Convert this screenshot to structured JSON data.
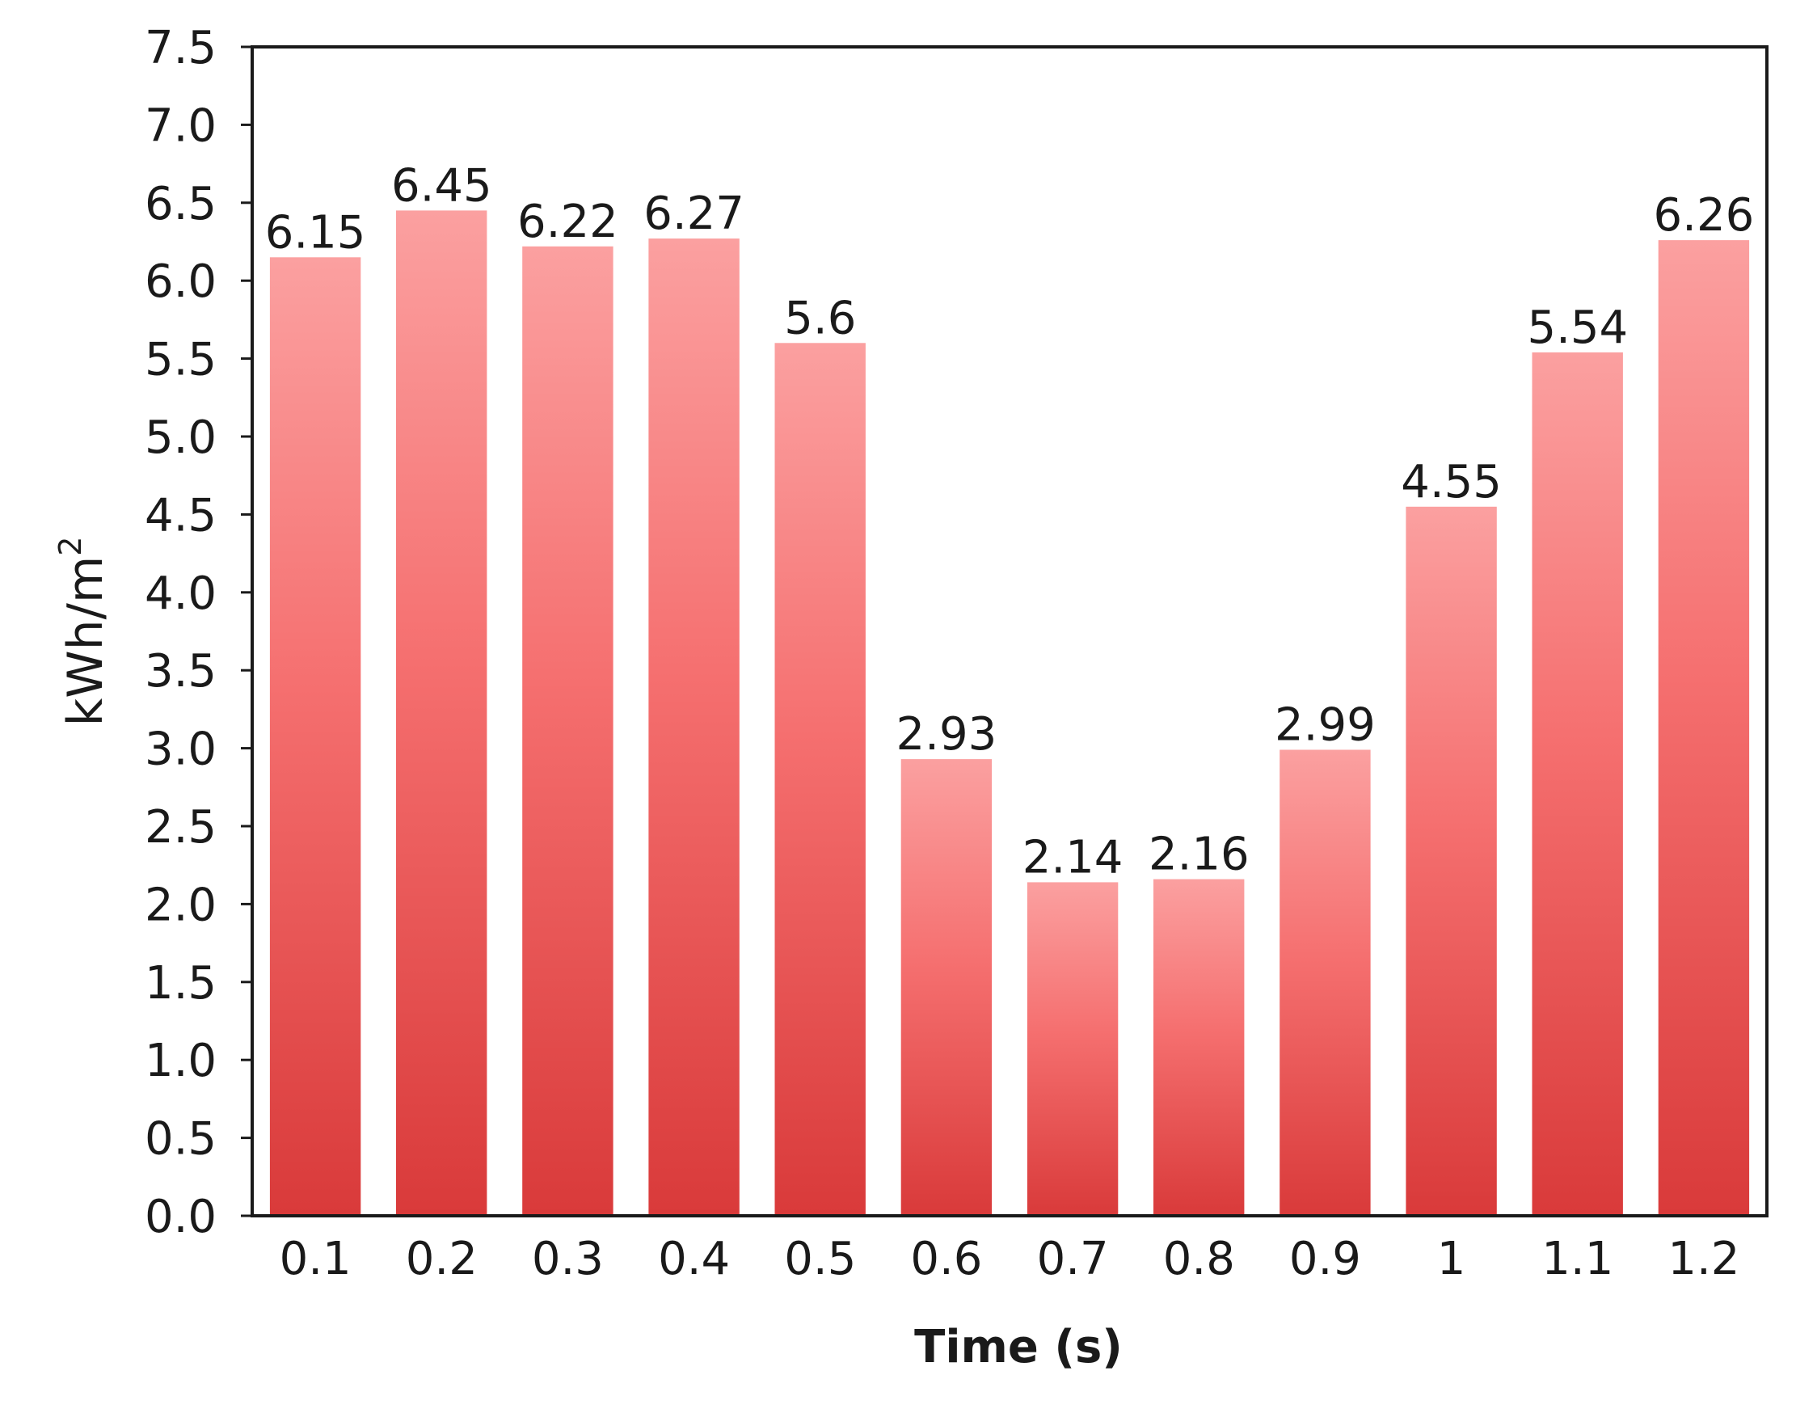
{
  "chart_data": {
    "type": "bar",
    "categories": [
      "0.1",
      "0.2",
      "0.3",
      "0.4",
      "0.5",
      "0.6",
      "0.7",
      "0.8",
      "0.9",
      "1",
      "1.1",
      "1.2"
    ],
    "values": [
      6.15,
      6.45,
      6.22,
      6.27,
      5.6,
      2.93,
      2.14,
      2.16,
      2.99,
      4.55,
      5.54,
      6.26
    ],
    "data_labels": [
      "6.15",
      "6.45",
      "6.22",
      "6.27",
      "5.6",
      "2.93",
      "2.14",
      "2.16",
      "2.99",
      "4.55",
      "5.54",
      "6.26"
    ],
    "title": "",
    "xlabel": "Time (s)",
    "ylabel": "kWh/m",
    "ylabel_superscript": "2",
    "ylim": [
      0,
      7.5
    ],
    "y_ticks": [
      "0.0",
      "0.5",
      "1.0",
      "1.5",
      "2.0",
      "2.5",
      "3.0",
      "3.5",
      "4.0",
      "4.5",
      "5.0",
      "5.5",
      "6.0",
      "6.5",
      "7.0",
      "7.5"
    ],
    "grid": false,
    "legend": "none",
    "colors": {
      "bar_top": "#fba0a0",
      "bar_mid": "#f56f6f",
      "bar_bottom": "#d93a3a",
      "axis": "#1a1a1a"
    }
  }
}
